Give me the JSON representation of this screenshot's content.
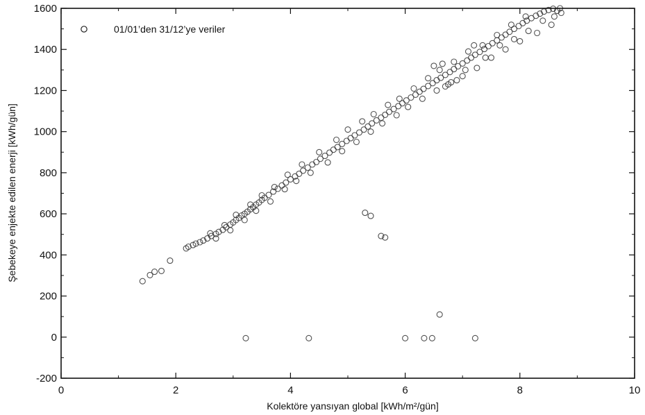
{
  "chart_data": {
    "type": "scatter",
    "title": "",
    "xlabel": "Kolektöre yansıyan global  [kWh/m²/gün]",
    "ylabel": "Şebekeye enjekte edilen enerji [kWh/gün]",
    "xlim": [
      0,
      10
    ],
    "ylim": [
      -200,
      1600
    ],
    "xticks": [
      0,
      2,
      4,
      6,
      8,
      10
    ],
    "yticks": [
      -200,
      0,
      200,
      400,
      600,
      800,
      1000,
      1200,
      1400,
      1600
    ],
    "grid": false,
    "legend": {
      "position": "top-left",
      "entries": [
        "01/01’den 31/12’ye veriler"
      ]
    },
    "series": [
      {
        "name": "01/01’den 31/12’ye veriler",
        "marker": "open-circle",
        "points": [
          [
            1.42,
            272
          ],
          [
            1.55,
            302
          ],
          [
            1.63,
            318
          ],
          [
            1.75,
            322
          ],
          [
            1.9,
            372
          ],
          [
            2.18,
            432
          ],
          [
            2.22,
            440
          ],
          [
            2.3,
            448
          ],
          [
            2.35,
            455
          ],
          [
            2.42,
            462
          ],
          [
            2.48,
            470
          ],
          [
            2.55,
            480
          ],
          [
            2.62,
            492
          ],
          [
            2.7,
            502
          ],
          [
            2.75,
            512
          ],
          [
            2.82,
            522
          ],
          [
            2.88,
            535
          ],
          [
            2.95,
            548
          ],
          [
            3.0,
            558
          ],
          [
            3.05,
            570
          ],
          [
            3.1,
            580
          ],
          [
            3.15,
            592
          ],
          [
            3.2,
            600
          ],
          [
            3.25,
            610
          ],
          [
            3.3,
            622
          ],
          [
            3.35,
            632
          ],
          [
            3.4,
            645
          ],
          [
            3.45,
            655
          ],
          [
            3.5,
            668
          ],
          [
            3.55,
            678
          ],
          [
            3.62,
            692
          ],
          [
            3.7,
            708
          ],
          [
            3.78,
            722
          ],
          [
            3.85,
            738
          ],
          [
            3.92,
            752
          ],
          [
            4.0,
            768
          ],
          [
            4.08,
            782
          ],
          [
            4.15,
            795
          ],
          [
            4.22,
            810
          ],
          [
            4.3,
            825
          ],
          [
            4.38,
            840
          ],
          [
            4.45,
            852
          ],
          [
            4.52,
            868
          ],
          [
            4.6,
            882
          ],
          [
            4.68,
            898
          ],
          [
            4.75,
            912
          ],
          [
            4.82,
            925
          ],
          [
            4.9,
            940
          ],
          [
            4.98,
            955
          ],
          [
            5.05,
            968
          ],
          [
            5.12,
            982
          ],
          [
            5.2,
            996
          ],
          [
            5.28,
            1010
          ],
          [
            5.35,
            1025
          ],
          [
            5.42,
            1040
          ],
          [
            5.5,
            1055
          ],
          [
            5.58,
            1068
          ],
          [
            5.65,
            1082
          ],
          [
            5.72,
            1096
          ],
          [
            5.8,
            1110
          ],
          [
            5.88,
            1124
          ],
          [
            5.95,
            1138
          ],
          [
            6.02,
            1152
          ],
          [
            6.1,
            1166
          ],
          [
            6.18,
            1180
          ],
          [
            6.25,
            1194
          ],
          [
            6.32,
            1208
          ],
          [
            6.4,
            1222
          ],
          [
            6.48,
            1236
          ],
          [
            6.55,
            1250
          ],
          [
            6.62,
            1262
          ],
          [
            6.7,
            1276
          ],
          [
            6.78,
            1290
          ],
          [
            6.85,
            1304
          ],
          [
            6.92,
            1318
          ],
          [
            7.0,
            1332
          ],
          [
            7.08,
            1346
          ],
          [
            7.15,
            1360
          ],
          [
            7.22,
            1374
          ],
          [
            7.3,
            1388
          ],
          [
            7.38,
            1402
          ],
          [
            7.45,
            1416
          ],
          [
            7.52,
            1430
          ],
          [
            7.6,
            1444
          ],
          [
            7.68,
            1458
          ],
          [
            7.75,
            1472
          ],
          [
            7.82,
            1486
          ],
          [
            7.9,
            1500
          ],
          [
            7.98,
            1514
          ],
          [
            8.05,
            1528
          ],
          [
            8.12,
            1540
          ],
          [
            8.2,
            1552
          ],
          [
            8.28,
            1564
          ],
          [
            8.35,
            1574
          ],
          [
            8.42,
            1584
          ],
          [
            8.5,
            1592
          ],
          [
            8.58,
            1598
          ],
          [
            8.65,
            1588
          ],
          [
            8.72,
            1578
          ],
          [
            2.6,
            505
          ],
          [
            2.85,
            545
          ],
          [
            3.05,
            595
          ],
          [
            3.3,
            645
          ],
          [
            3.5,
            690
          ],
          [
            3.72,
            730
          ],
          [
            3.95,
            790
          ],
          [
            4.2,
            840
          ],
          [
            4.5,
            900
          ],
          [
            4.8,
            960
          ],
          [
            5.0,
            1010
          ],
          [
            5.25,
            1050
          ],
          [
            5.45,
            1085
          ],
          [
            5.7,
            1130
          ],
          [
            5.9,
            1160
          ],
          [
            6.15,
            1210
          ],
          [
            6.4,
            1260
          ],
          [
            6.6,
            1300
          ],
          [
            6.85,
            1340
          ],
          [
            7.1,
            1390
          ],
          [
            7.35,
            1420
          ],
          [
            7.6,
            1470
          ],
          [
            7.85,
            1520
          ],
          [
            8.1,
            1560
          ],
          [
            2.7,
            480
          ],
          [
            2.95,
            520
          ],
          [
            3.2,
            570
          ],
          [
            3.4,
            615
          ],
          [
            3.65,
            660
          ],
          [
            3.9,
            720
          ],
          [
            4.1,
            760
          ],
          [
            4.35,
            800
          ],
          [
            4.65,
            850
          ],
          [
            4.9,
            905
          ],
          [
            5.15,
            950
          ],
          [
            5.4,
            1000
          ],
          [
            5.6,
            1040
          ],
          [
            5.85,
            1080
          ],
          [
            6.05,
            1120
          ],
          [
            6.3,
            1160
          ],
          [
            6.55,
            1200
          ],
          [
            6.75,
            1230
          ],
          [
            7.0,
            1270
          ],
          [
            7.25,
            1310
          ],
          [
            7.5,
            1360
          ],
          [
            7.75,
            1400
          ],
          [
            8.0,
            1440
          ],
          [
            8.3,
            1480
          ],
          [
            8.55,
            1520
          ],
          [
            6.5,
            1320
          ],
          [
            6.65,
            1330
          ],
          [
            6.8,
            1240
          ],
          [
            6.9,
            1250
          ],
          [
            6.7,
            1220
          ],
          [
            7.05,
            1300
          ],
          [
            7.2,
            1420
          ],
          [
            7.4,
            1360
          ],
          [
            7.65,
            1420
          ],
          [
            7.9,
            1450
          ],
          [
            8.15,
            1490
          ],
          [
            8.4,
            1540
          ],
          [
            8.6,
            1560
          ],
          [
            8.7,
            1600
          ],
          [
            5.3,
            605
          ],
          [
            5.58,
            492
          ],
          [
            5.4,
            590
          ],
          [
            5.65,
            485
          ],
          [
            3.22,
            -5
          ],
          [
            4.32,
            -5
          ],
          [
            6.0,
            -5
          ],
          [
            6.33,
            -5
          ],
          [
            6.47,
            -5
          ],
          [
            7.22,
            -5
          ],
          [
            6.6,
            110
          ]
        ]
      }
    ]
  }
}
